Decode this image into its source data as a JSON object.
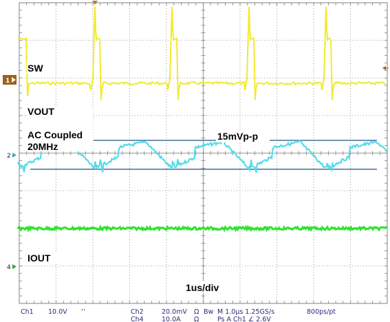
{
  "labels": {
    "sw": "SW",
    "vout": "VOUT",
    "ac_coupled": "AC Coupled",
    "bandwidth": "20MHz",
    "ripple": "15mVp-p",
    "iout": "IOUT",
    "timebase": "1us/div"
  },
  "markers": {
    "ch1": "1",
    "ch2": "2",
    "ch4": "4"
  },
  "status_bar": {
    "row1": {
      "ch1": "Ch1",
      "ch1_scale": "10.0V",
      "ch1_coupling": "‘’",
      "ch2": "Ch2",
      "ch2_scale": "20.0mV",
      "ch2_impedance": "Ω",
      "bw": "Bw",
      "horizontal": "M 1.0µs 1.25GS/s",
      "record": "800ps/pt"
    },
    "row2": {
      "ch4": "Ch4",
      "ch4_scale": "10.0A",
      "ch4_impedance": "Ω",
      "trigger": "Ps A Ch1 ∠ 2.6V"
    }
  },
  "colors": {
    "sw_trace": "#f2ea2a",
    "vout_trace": "#55dbe8",
    "iout_trace": "#2fe22f",
    "grid": "#7f7f7f",
    "marker": "#a0601a",
    "ripple_lines": "#1d4f8c"
  }
}
